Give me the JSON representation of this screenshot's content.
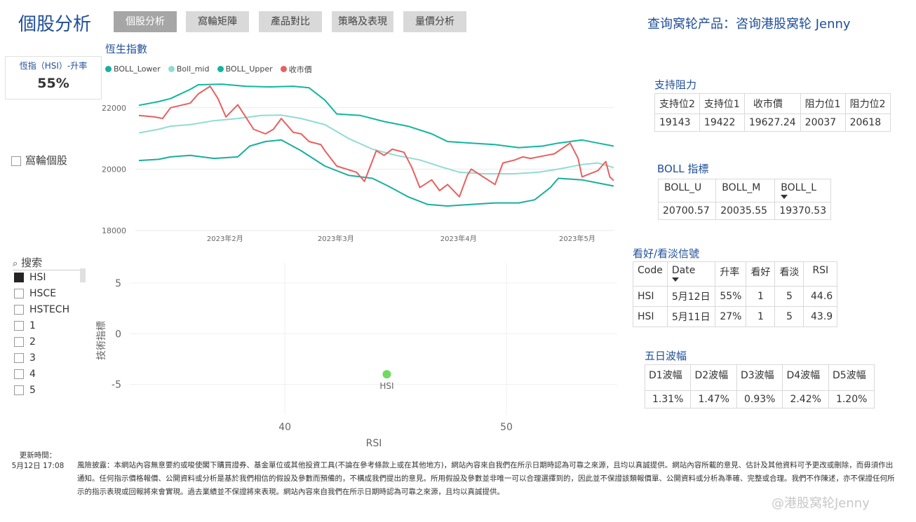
{
  "header": {
    "title": "個股分析",
    "tabs": [
      {
        "label": "個股分析",
        "active": true
      },
      {
        "label": "窩輪矩陣",
        "active": false
      },
      {
        "label": "產品對比",
        "active": false
      },
      {
        "label": "策略及表現",
        "active": false
      },
      {
        "label": "量價分析",
        "active": false
      }
    ],
    "query_text": "查询窝轮产品：咨询港股窝轮 Jenny"
  },
  "kpi": {
    "label": "恆指（HSI）-升率",
    "value": "55%"
  },
  "warrant_toggle": {
    "label": "窩輪個股",
    "checked": false
  },
  "slicer": {
    "search_placeholder": "搜索",
    "items": [
      {
        "label": "HSI",
        "checked": true
      },
      {
        "label": "HSCE",
        "checked": false
      },
      {
        "label": "HSTECH",
        "checked": false
      },
      {
        "label": "1",
        "checked": false
      },
      {
        "label": "2",
        "checked": false
      },
      {
        "label": "3",
        "checked": false
      },
      {
        "label": "4",
        "checked": false
      },
      {
        "label": "5",
        "checked": false
      }
    ]
  },
  "colors": {
    "boll_lower": "#1AAE9F",
    "boll_mid": "#8FDCD4",
    "boll_upper": "#12B5A0",
    "close": "#E8605F",
    "point": "#6FD963",
    "accent": "#1F4E9A"
  },
  "line_chart": {
    "title": "恆生指數",
    "legend": [
      "BOLL_Lower",
      "Boll_mid",
      "BOLL_Upper",
      "收市價"
    ],
    "y_ticks": [
      "22000",
      "20000",
      "18000"
    ],
    "x_ticks": [
      "2023年2月",
      "2023年3月",
      "2023年4月",
      "2023年5月"
    ],
    "chart_data": {
      "type": "line",
      "x_range": [
        "2023-01-12",
        "2023-05-12"
      ],
      "ylim": [
        18000,
        23000
      ],
      "series": [
        {
          "name": "BOLL_Upper",
          "points": [
            [
              "2023-01-12",
              22080
            ],
            [
              "2023-01-17",
              22200
            ],
            [
              "2023-01-20",
              22300
            ],
            [
              "2023-01-25",
              22600
            ],
            [
              "2023-01-27",
              22750
            ],
            [
              "2023-02-02",
              22770
            ],
            [
              "2023-02-08",
              22700
            ],
            [
              "2023-02-14",
              22680
            ],
            [
              "2023-02-20",
              22700
            ],
            [
              "2023-02-24",
              22650
            ],
            [
              "2023-02-28",
              22250
            ],
            [
              "2023-03-03",
              21800
            ],
            [
              "2023-03-09",
              21750
            ],
            [
              "2023-03-15",
              21550
            ],
            [
              "2023-03-21",
              21400
            ],
            [
              "2023-03-27",
              21150
            ],
            [
              "2023-03-31",
              20900
            ],
            [
              "2023-04-06",
              20850
            ],
            [
              "2023-04-12",
              20800
            ],
            [
              "2023-04-18",
              20700
            ],
            [
              "2023-04-24",
              20750
            ],
            [
              "2023-04-28",
              20850
            ],
            [
              "2023-05-04",
              20950
            ],
            [
              "2023-05-08",
              20850
            ],
            [
              "2023-05-12",
              20750
            ]
          ]
        },
        {
          "name": "Boll_mid",
          "points": [
            [
              "2023-01-12",
              21180
            ],
            [
              "2023-01-17",
              21300
            ],
            [
              "2023-01-20",
              21400
            ],
            [
              "2023-01-25",
              21450
            ],
            [
              "2023-01-31",
              21580
            ],
            [
              "2023-02-06",
              21650
            ],
            [
              "2023-02-12",
              21750
            ],
            [
              "2023-02-17",
              21760
            ],
            [
              "2023-02-22",
              21650
            ],
            [
              "2023-02-28",
              21450
            ],
            [
              "2023-03-06",
              21000
            ],
            [
              "2023-03-12",
              20650
            ],
            [
              "2023-03-18",
              20450
            ],
            [
              "2023-03-24",
              20300
            ],
            [
              "2023-03-30",
              20050
            ],
            [
              "2023-04-03",
              19900
            ],
            [
              "2023-04-09",
              19850
            ],
            [
              "2023-04-17",
              19850
            ],
            [
              "2023-04-23",
              19900
            ],
            [
              "2023-04-28",
              20000
            ],
            [
              "2023-05-04",
              20150
            ],
            [
              "2023-05-08",
              20200
            ],
            [
              "2023-05-12",
              20050
            ]
          ]
        },
        {
          "name": "BOLL_Lower",
          "points": [
            [
              "2023-01-12",
              20280
            ],
            [
              "2023-01-17",
              20320
            ],
            [
              "2023-01-20",
              20400
            ],
            [
              "2023-01-25",
              20450
            ],
            [
              "2023-01-31",
              20350
            ],
            [
              "2023-02-06",
              20400
            ],
            [
              "2023-02-09",
              20750
            ],
            [
              "2023-02-13",
              20900
            ],
            [
              "2023-02-17",
              20950
            ],
            [
              "2023-02-22",
              20600
            ],
            [
              "2023-02-28",
              20100
            ],
            [
              "2023-03-06",
              19800
            ],
            [
              "2023-03-12",
              19700
            ],
            [
              "2023-03-16",
              19450
            ],
            [
              "2023-03-21",
              19100
            ],
            [
              "2023-03-26",
              18850
            ],
            [
              "2023-03-31",
              18800
            ],
            [
              "2023-04-06",
              18850
            ],
            [
              "2023-04-12",
              18900
            ],
            [
              "2023-04-18",
              18900
            ],
            [
              "2023-04-22",
              19000
            ],
            [
              "2023-04-26",
              19400
            ],
            [
              "2023-04-28",
              19700
            ],
            [
              "2023-05-04",
              19650
            ],
            [
              "2023-05-08",
              19550
            ],
            [
              "2023-05-12",
              19450
            ]
          ]
        },
        {
          "name": "收市價",
          "points": [
            [
              "2023-01-12",
              21750
            ],
            [
              "2023-01-16",
              21700
            ],
            [
              "2023-01-18",
              21650
            ],
            [
              "2023-01-20",
              22000
            ],
            [
              "2023-01-25",
              22150
            ],
            [
              "2023-01-27",
              22450
            ],
            [
              "2023-01-30",
              22700
            ],
            [
              "2023-02-01",
              22300
            ],
            [
              "2023-02-03",
              21700
            ],
            [
              "2023-02-06",
              22100
            ],
            [
              "2023-02-08",
              21700
            ],
            [
              "2023-02-10",
              21300
            ],
            [
              "2023-02-13",
              21150
            ],
            [
              "2023-02-15",
              21300
            ],
            [
              "2023-02-17",
              21650
            ],
            [
              "2023-02-20",
              21200
            ],
            [
              "2023-02-22",
              21150
            ],
            [
              "2023-02-24",
              20900
            ],
            [
              "2023-02-27",
              20800
            ],
            [
              "2023-02-28",
              20600
            ],
            [
              "2023-03-03",
              20100
            ],
            [
              "2023-03-08",
              19900
            ],
            [
              "2023-03-10",
              19600
            ],
            [
              "2023-03-13",
              20600
            ],
            [
              "2023-03-15",
              20450
            ],
            [
              "2023-03-17",
              20650
            ],
            [
              "2023-03-20",
              20550
            ],
            [
              "2023-03-22",
              20050
            ],
            [
              "2023-03-24",
              19400
            ],
            [
              "2023-03-27",
              19650
            ],
            [
              "2023-03-29",
              19300
            ],
            [
              "2023-03-31",
              19500
            ],
            [
              "2023-04-03",
              19100
            ],
            [
              "2023-04-05",
              19800
            ],
            [
              "2023-04-06",
              20000
            ],
            [
              "2023-04-12",
              19500
            ],
            [
              "2023-04-14",
              20200
            ],
            [
              "2023-04-17",
              20300
            ],
            [
              "2023-04-19",
              20400
            ],
            [
              "2023-04-21",
              20350
            ],
            [
              "2023-04-25",
              20450
            ],
            [
              "2023-04-27",
              20500
            ],
            [
              "2023-05-01",
              20850
            ],
            [
              "2023-05-03",
              20350
            ],
            [
              "2023-05-04",
              19750
            ],
            [
              "2023-05-05",
              19800
            ],
            [
              "2023-05-08",
              19950
            ],
            [
              "2023-05-10",
              20250
            ],
            [
              "2023-05-11",
              19750
            ],
            [
              "2023-05-12",
              19627.24
            ]
          ]
        }
      ]
    }
  },
  "scatter": {
    "ylabel": "技術指標",
    "xlabel": "RSI",
    "y_ticks": [
      "5",
      "0",
      "-5"
    ],
    "x_ticks": [
      "40",
      "50"
    ],
    "chart_data": {
      "type": "scatter",
      "xlim": [
        33,
        55
      ],
      "ylim": [
        -8,
        7
      ],
      "points": [
        {
          "label": "HSI",
          "x": 44.6,
          "y": -4
        }
      ]
    }
  },
  "support_resistance": {
    "title": "支持阻力",
    "headers": [
      "支持位2",
      "支持位1",
      "收市價",
      "阻力位1",
      "阻力位2"
    ],
    "values": [
      "19143",
      "19422",
      "19627.24",
      "20037",
      "20618"
    ]
  },
  "boll_table": {
    "title": "BOLL 指標",
    "headers": [
      "BOLL_U",
      "BOLL_M",
      "BOLL_L"
    ],
    "values": [
      "20700.57",
      "20035.55",
      "19370.53"
    ]
  },
  "signal_table": {
    "title": "看好/看淡信號",
    "headers": [
      "Code",
      "Date",
      "升率",
      "看好",
      "看淡",
      "RSI"
    ],
    "rows": [
      [
        "HSI",
        "5月12日",
        "55%",
        "1",
        "5",
        "44.6"
      ],
      [
        "HSI",
        "5月11日",
        "27%",
        "1",
        "5",
        "43.9"
      ]
    ]
  },
  "volatility_table": {
    "title": "五日波幅",
    "headers": [
      "D1波幅",
      "D2波幅",
      "D3波幅",
      "D4波幅",
      "D5波幅"
    ],
    "values": [
      "1.31%",
      "1.47%",
      "0.93%",
      "2.42%",
      "1.20%"
    ]
  },
  "footer": {
    "update_label": "更新時間：",
    "update_time": "5月12日 17:08",
    "disclaimer": "風險披露：本網站內容無意要約或唆使閣下購買證券、基金單位或其他投資工具(不論在參考條款上或在其他地方)，網站內容來自我們在所示日期時認為可靠之來源，且均以真誠提供。網站內容所載的意見、估計及其他資料可予更改或刪除，而毋須作出通知。任何指示價格報價、公開資料或分析是基於我們相信的假設及參數而預備的，不構成我們提出的意見。所用假設及參數並非唯一可以合理選擇到的，因此並不保證該類報價單、公開資料或分析為準確、完整或合理。我們不作陳述，亦不保證任何所示的指示表現或回報將來會實現。過去業績並不保證將來表現。網站內容來自我們在所示日期時認為可靠之來源，且均以真誠提供。",
    "watermark": "@港股窝轮Jenny"
  }
}
